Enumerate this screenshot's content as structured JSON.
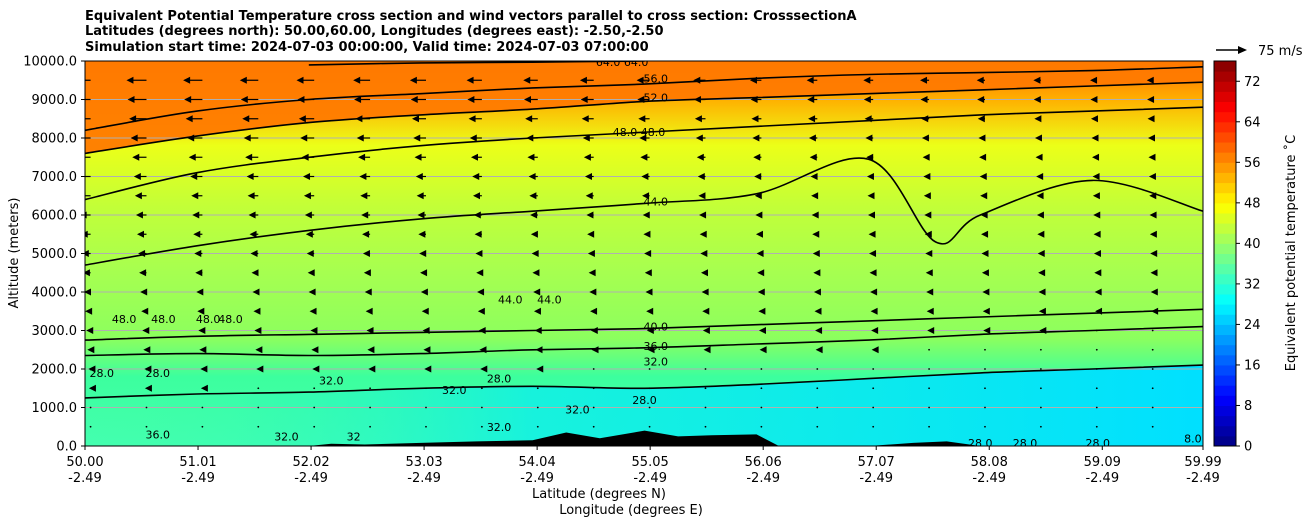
{
  "chart_data": {
    "type": "heatmap",
    "title_lines": [
      "Equivalent Potential Temperature cross section and wind vectors parallel to cross section: CrosssectionA",
      "Latitudes (degrees north): 50.00,60.00, Longitudes (degrees east): -2.50,-2.50",
      "Simulation start time: 2024-07-03 00:00:00, Valid time: 2024-07-03 07:00:00"
    ],
    "xlabel": "Latitude (degrees N)",
    "xlabel2": "Longitude (degrees E)",
    "ylabel": "Altitude (meters)",
    "xlim": [
      50.0,
      59.99
    ],
    "ylim": [
      0,
      10000
    ],
    "x_ticks": [
      {
        "lat": "50.00",
        "lon": "-2.49",
        "value": 50.0
      },
      {
        "lat": "51.01",
        "lon": "-2.49",
        "value": 51.01
      },
      {
        "lat": "52.02",
        "lon": "-2.49",
        "value": 52.02
      },
      {
        "lat": "53.03",
        "lon": "-2.49",
        "value": 53.03
      },
      {
        "lat": "54.04",
        "lon": "-2.49",
        "value": 54.04
      },
      {
        "lat": "55.05",
        "lon": "-2.49",
        "value": 55.05
      },
      {
        "lat": "56.06",
        "lon": "-2.49",
        "value": 56.06
      },
      {
        "lat": "57.07",
        "lon": "-2.49",
        "value": 57.07
      },
      {
        "lat": "58.08",
        "lon": "-2.49",
        "value": 58.08
      },
      {
        "lat": "59.09",
        "lon": "-2.49",
        "value": 59.09
      },
      {
        "lat": "59.99",
        "lon": "-2.49",
        "value": 59.99
      }
    ],
    "y_ticks": [
      {
        "label": "0.0",
        "value": 0
      },
      {
        "label": "1000.0",
        "value": 1000
      },
      {
        "label": "2000.0",
        "value": 2000
      },
      {
        "label": "3000.0",
        "value": 3000
      },
      {
        "label": "4000.0",
        "value": 4000
      },
      {
        "label": "5000.0",
        "value": 5000
      },
      {
        "label": "6000.0",
        "value": 6000
      },
      {
        "label": "7000.0",
        "value": 7000
      },
      {
        "label": "8000.0",
        "value": 8000
      },
      {
        "label": "9000.0",
        "value": 9000
      },
      {
        "label": "10000.0",
        "value": 10000
      }
    ],
    "grid": "horizontal",
    "colorbar": {
      "label": "Equivalent potential temperature $^\\circ$C",
      "label_display": "Equivalent potential temperature ˚C",
      "min": 0,
      "max": 76,
      "step": 2,
      "ticks": [
        "0",
        "8",
        "16",
        "24",
        "32",
        "40",
        "48",
        "56",
        "64",
        "72"
      ],
      "colormap": "jet"
    },
    "quiver_key": "75 m/s",
    "contour_levels": [
      28,
      32,
      36,
      40,
      44,
      48,
      52,
      56,
      64
    ],
    "contours": [
      {
        "level": 32.0,
        "points": [
          [
            50.0,
            1250
          ],
          [
            51.0,
            1350
          ],
          [
            52.0,
            1400
          ],
          [
            53.0,
            1500
          ],
          [
            54.0,
            1550
          ],
          [
            55.0,
            1500
          ],
          [
            56.0,
            1600
          ],
          [
            57.0,
            1750
          ],
          [
            58.0,
            1900
          ],
          [
            59.0,
            2000
          ],
          [
            59.99,
            2100
          ]
        ]
      },
      {
        "level": 36.0,
        "points": [
          [
            50.0,
            2350
          ],
          [
            51.0,
            2400
          ],
          [
            52.0,
            2350
          ],
          [
            53.0,
            2400
          ],
          [
            54.0,
            2500
          ],
          [
            55.0,
            2550
          ],
          [
            56.0,
            2650
          ],
          [
            57.0,
            2750
          ],
          [
            58.0,
            2900
          ],
          [
            59.0,
            3000
          ],
          [
            59.99,
            3100
          ]
        ]
      },
      {
        "level": 40.0,
        "points": [
          [
            50.0,
            2750
          ],
          [
            51.0,
            2850
          ],
          [
            52.0,
            2900
          ],
          [
            53.0,
            2950
          ],
          [
            54.0,
            3000
          ],
          [
            55.0,
            3050
          ],
          [
            56.0,
            3150
          ],
          [
            57.0,
            3250
          ],
          [
            58.0,
            3350
          ],
          [
            59.0,
            3450
          ],
          [
            59.99,
            3550
          ]
        ]
      },
      {
        "level": 44.0,
        "points": [
          [
            50.0,
            4700
          ],
          [
            51.0,
            5200
          ],
          [
            52.0,
            5600
          ],
          [
            53.0,
            5900
          ],
          [
            54.0,
            6100
          ],
          [
            55.0,
            6300
          ],
          [
            56.0,
            6550
          ],
          [
            57.0,
            7450
          ],
          [
            57.6,
            5300
          ],
          [
            58.0,
            6000
          ],
          [
            59.0,
            6900
          ],
          [
            59.99,
            6100
          ]
        ]
      },
      {
        "level": 48.0,
        "points": [
          [
            50.0,
            6400
          ],
          [
            51.0,
            7100
          ],
          [
            52.0,
            7500
          ],
          [
            53.0,
            7800
          ],
          [
            54.0,
            8000
          ],
          [
            55.0,
            8150
          ],
          [
            56.0,
            8300
          ],
          [
            57.0,
            8450
          ],
          [
            58.0,
            8600
          ],
          [
            59.0,
            8700
          ],
          [
            59.99,
            8800
          ]
        ]
      },
      {
        "level": 52.0,
        "points": [
          [
            50.0,
            7600
          ],
          [
            51.0,
            8050
          ],
          [
            52.0,
            8400
          ],
          [
            53.0,
            8600
          ],
          [
            54.0,
            8750
          ],
          [
            55.0,
            8950
          ],
          [
            56.0,
            9050
          ],
          [
            57.0,
            9150
          ],
          [
            58.0,
            9250
          ],
          [
            59.0,
            9350
          ],
          [
            59.99,
            9450
          ]
        ]
      },
      {
        "level": 56.0,
        "points": [
          [
            50.0,
            8200
          ],
          [
            51.0,
            8700
          ],
          [
            52.0,
            9000
          ],
          [
            53.0,
            9150
          ],
          [
            54.0,
            9300
          ],
          [
            55.0,
            9400
          ],
          [
            56.0,
            9550
          ],
          [
            57.0,
            9650
          ],
          [
            58.0,
            9700
          ],
          [
            59.0,
            9750
          ],
          [
            59.99,
            9850
          ]
        ]
      },
      {
        "level": 64.0,
        "points": [
          [
            52.0,
            9900
          ],
          [
            53.0,
            9950
          ],
          [
            54.0,
            9970
          ],
          [
            55.0,
            10000
          ]
        ]
      }
    ],
    "contour_labels": [
      {
        "text": "64.0 64.0",
        "x": 54.8,
        "y": 9970
      },
      {
        "text": "56.0",
        "x": 55.1,
        "y": 9550
      },
      {
        "text": "52.0",
        "x": 55.1,
        "y": 9050
      },
      {
        "text": "48.0 48.0",
        "x": 54.95,
        "y": 8150
      },
      {
        "text": "44.0",
        "x": 55.1,
        "y": 6350
      },
      {
        "text": "44.0",
        "x": 53.8,
        "y": 3800
      },
      {
        "text": "44.0",
        "x": 54.15,
        "y": 3800
      },
      {
        "text": "48.0",
        "x": 50.35,
        "y": 3300
      },
      {
        "text": "48.0",
        "x": 50.7,
        "y": 3300
      },
      {
        "text": "48.0",
        "x": 51.1,
        "y": 3300
      },
      {
        "text": "48.0",
        "x": 51.3,
        "y": 3300
      },
      {
        "text": "40.0",
        "x": 55.1,
        "y": 3100
      },
      {
        "text": "36.0",
        "x": 55.1,
        "y": 2600
      },
      {
        "text": "32.0",
        "x": 55.1,
        "y": 2200
      },
      {
        "text": "28.0",
        "x": 50.15,
        "y": 1900
      },
      {
        "text": "28.0",
        "x": 50.65,
        "y": 1900
      },
      {
        "text": "32.0",
        "x": 52.2,
        "y": 1700
      },
      {
        "text": "32.0",
        "x": 53.3,
        "y": 1450
      },
      {
        "text": "28.0",
        "x": 53.7,
        "y": 1750
      },
      {
        "text": "28.0",
        "x": 55.0,
        "y": 1200
      },
      {
        "text": "32.0",
        "x": 54.4,
        "y": 950
      },
      {
        "text": "32.0",
        "x": 53.7,
        "y": 500
      },
      {
        "text": "36.0",
        "x": 50.65,
        "y": 300
      },
      {
        "text": "32.0",
        "x": 51.8,
        "y": 250
      },
      {
        "text": "32",
        "x": 52.4,
        "y": 250
      },
      {
        "text": "28.0",
        "x": 58.0,
        "y": 80
      },
      {
        "text": "28.0",
        "x": 58.4,
        "y": 80
      },
      {
        "text": "28.0",
        "x": 59.05,
        "y": 80
      },
      {
        "text": "8.0",
        "x": 59.9,
        "y": 200
      }
    ],
    "terrain": [
      [
        52.0,
        0
      ],
      [
        52.2,
        60
      ],
      [
        52.5,
        40
      ],
      [
        53.0,
        80
      ],
      [
        53.5,
        120
      ],
      [
        54.0,
        150
      ],
      [
        54.3,
        350
      ],
      [
        54.6,
        200
      ],
      [
        55.0,
        400
      ],
      [
        55.3,
        250
      ],
      [
        55.6,
        280
      ],
      [
        56.0,
        300
      ],
      [
        56.2,
        0
      ],
      [
        57.0,
        0
      ],
      [
        57.4,
        80
      ],
      [
        57.7,
        120
      ],
      [
        58.0,
        0
      ]
    ],
    "wind_u_profile": [
      {
        "z": 10000,
        "u": -20
      },
      {
        "z": 9000,
        "u": -18
      },
      {
        "z": 8000,
        "u": -15
      },
      {
        "z": 7000,
        "u": -12
      },
      {
        "z": 6000,
        "u": -10
      },
      {
        "z": 5000,
        "u": -8
      },
      {
        "z": 4000,
        "u": -6
      },
      {
        "z": 3000,
        "u": -4
      },
      {
        "z": 2000,
        "u": -2
      },
      {
        "z": 1000,
        "u": -1
      },
      {
        "z": 0,
        "u": 0
      }
    ]
  }
}
